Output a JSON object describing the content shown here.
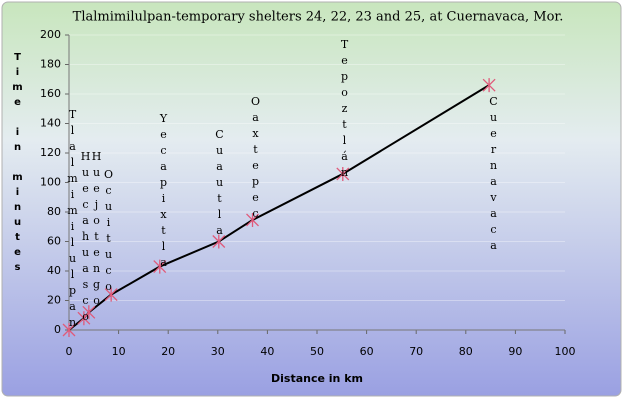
{
  "chart_data": {
    "type": "line",
    "title": "Tlalmimilulpan-temporary shelters 24, 22, 23 and 25, at Cuernavaca, Mor.",
    "x_label": "Distance in km",
    "y_label": "Time in minutes",
    "x": [
      0,
      3,
      4,
      8.5,
      18.3,
      30.2,
      37,
      55.2,
      84.7
    ],
    "series": [
      {
        "name": "Time",
        "color": "#000000",
        "marker_color": "#e05a7a",
        "values": [
          0,
          8,
          12,
          24,
          43,
          60,
          74.6,
          105.8,
          166
        ]
      }
    ],
    "point_labels": [
      "Tlalmimilulpan",
      "Huecahuasco",
      "Huejotengo",
      "Ocuituco",
      "Yecapixtla",
      "Cuautla",
      "Oaxtepec",
      "Tepoztlán",
      "Cuernavaca"
    ],
    "xlim": [
      0,
      100
    ],
    "xticks": [
      0,
      10,
      20,
      30,
      40,
      50,
      60,
      70,
      80,
      90,
      100
    ],
    "ylim": [
      0,
      200
    ],
    "yticks": [
      0,
      20,
      40,
      60,
      80,
      100,
      120,
      140,
      160,
      180,
      200
    ],
    "grid": true
  }
}
